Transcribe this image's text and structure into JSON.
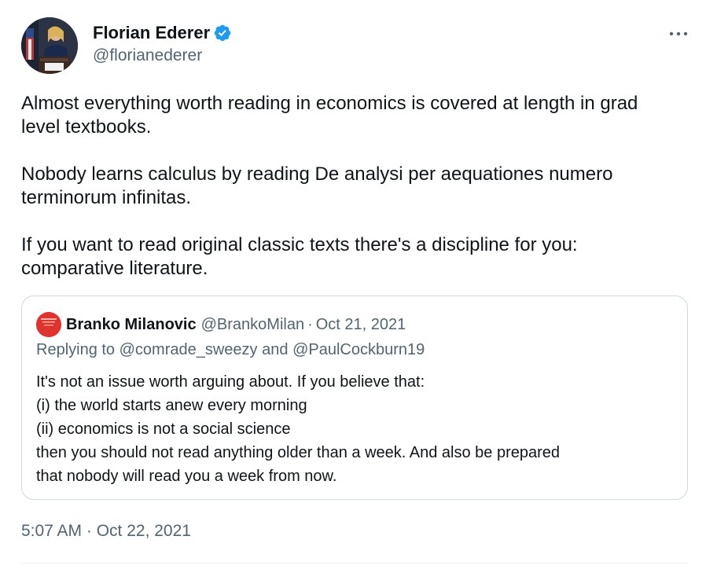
{
  "author": {
    "name": "Florian Ederer",
    "handle": "@florianederer",
    "verified": true,
    "avatar_icon": "profile-photo"
  },
  "tweet": {
    "paragraphs": [
      "Almost everything worth reading in economics is covered at length in grad level textbooks.",
      "Nobody learns calculus by reading De analysi per aequationes numero terminorum infinitas.",
      "If you want to read original classic texts there's a discipline for you: comparative literature."
    ],
    "timestamp": "5:07 AM · Oct 22, 2021"
  },
  "quote": {
    "name": "Branko Milanovic",
    "handle": "@BrankoMilan",
    "separator": "·",
    "date": "Oct 21, 2021",
    "reply_prefix": "Replying to",
    "reply_mention_1": "@comrade_sweezy",
    "reply_and": "and",
    "reply_mention_2": "@PaulCockburn19",
    "lines": [
      "It's not an issue worth arguing about. If you believe that:",
      "(i) the world starts anew every morning",
      "(ii) economics is not a social science",
      "then you should not read anything older than a week. And also be prepared",
      "that nobody will read you a week from now."
    ]
  },
  "colors": {
    "text": "#0f1419",
    "secondary": "#536471",
    "border": "#cfd9de",
    "verified_blue": "#1d9bf0",
    "quote_avatar": "#e0322e"
  },
  "icons": {
    "verified": "verified-badge-icon",
    "more": "more-horizontal-icon"
  }
}
